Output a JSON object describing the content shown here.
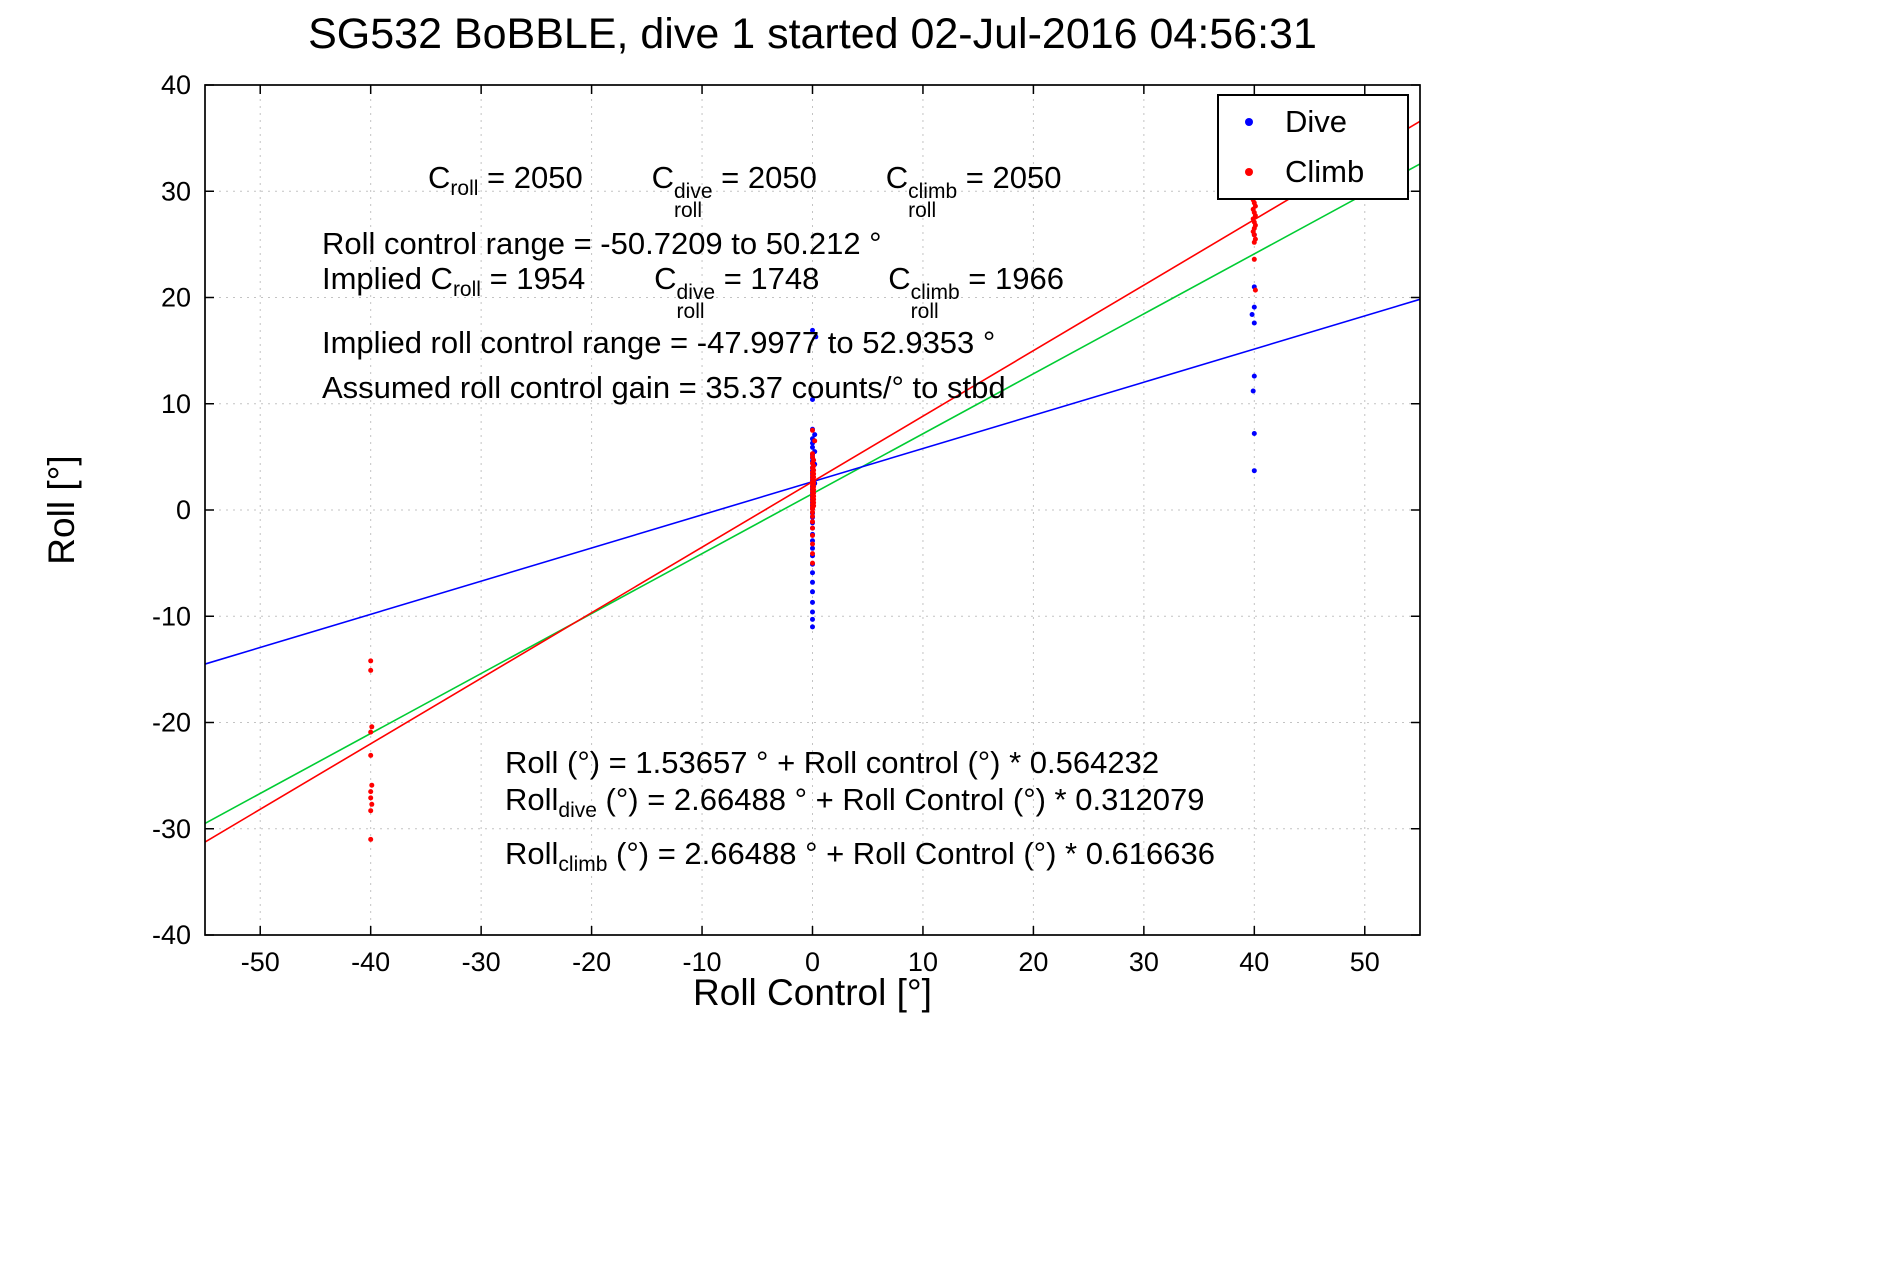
{
  "legend": {
    "items": [
      {
        "label": "Dive",
        "color": "#0000ff"
      },
      {
        "label": "Climb",
        "color": "#ff0000"
      }
    ]
  },
  "annotations": [
    {
      "text": "C_roll = 2050      C_roll^dive = 2050      C_roll^climb = 2050",
      "segments": [
        {
          "t": "C"
        },
        {
          "sub": "roll"
        },
        {
          "t": " = 2050        "
        },
        {
          "t": "C"
        },
        {
          "ss": [
            "dive",
            "roll"
          ]
        },
        {
          "t": " = 2050        "
        },
        {
          "t": "C"
        },
        {
          "ss": [
            "climb",
            "roll"
          ]
        },
        {
          "t": " = 2050"
        }
      ]
    },
    {
      "text": "Roll control range = -50.7209 to 50.212 °",
      "segments": [
        {
          "t": "Roll control range = -50.7209 to 50.212 °"
        }
      ]
    },
    {
      "text": "Implied C_roll = 1954      C_roll^dive = 1748      C_roll^climb = 1966",
      "segments": [
        {
          "t": "Implied C"
        },
        {
          "sub": "roll"
        },
        {
          "t": " = 1954        "
        },
        {
          "t": "C"
        },
        {
          "ss": [
            "dive",
            "roll"
          ]
        },
        {
          "t": " = 1748        "
        },
        {
          "t": "C"
        },
        {
          "ss": [
            "climb",
            "roll"
          ]
        },
        {
          "t": " = 1966"
        }
      ]
    },
    {
      "text": "Implied roll control range = -47.9977 to 52.9353 °",
      "segments": [
        {
          "t": "Implied roll control range = -47.9977 to 52.9353 °"
        }
      ]
    },
    {
      "text": "Assumed roll control gain = 35.37 counts/° to stbd",
      "segments": [
        {
          "t": "Assumed roll control gain = 35.37 counts/° to stbd"
        }
      ]
    },
    {
      "text": "Roll (°) = 1.53657 ° + Roll control (°) * 0.564232",
      "segments": [
        {
          "t": "Roll (°) = 1.53657 ° + Roll control (°) * 0.564232"
        }
      ]
    },
    {
      "text": "Roll_dive (°) = 2.66488 ° + Roll Control (°) * 0.312079",
      "segments": [
        {
          "t": "Roll"
        },
        {
          "sub": "dive"
        },
        {
          "t": " (°) = 2.66488 ° + Roll Control (°) * 0.312079"
        }
      ]
    },
    {
      "text": "Roll_climb (°) = 2.66488 ° + Roll Control (°) * 0.616636",
      "segments": [
        {
          "t": "Roll"
        },
        {
          "sub": "climb"
        },
        {
          "t": " (°) = 2.66488 ° + Roll Control (°) * 0.616636"
        }
      ]
    }
  ],
  "chart_data": {
    "type": "scatter",
    "title": "SG532 BoBBLE, dive 1 started 02-Jul-2016 04:56:31",
    "xlabel": "Roll Control [°]",
    "ylabel": "Roll [°]",
    "xlim": [
      -55,
      55
    ],
    "ylim": [
      -40,
      40
    ],
    "xticks": [
      -50,
      -40,
      -30,
      -20,
      -10,
      0,
      10,
      20,
      30,
      40,
      50
    ],
    "yticks": [
      -40,
      -30,
      -20,
      -10,
      0,
      10,
      20,
      30,
      40
    ],
    "grid": true,
    "legend_position": "top-right",
    "series": [
      {
        "name": "Dive",
        "color": "#0000ff",
        "points": [
          [
            0,
            16.9
          ],
          [
            0.3,
            16.3
          ],
          [
            0,
            10.4
          ],
          [
            0,
            7.6
          ],
          [
            0.2,
            7.1
          ],
          [
            0,
            6.7
          ],
          [
            0,
            6.3
          ],
          [
            0,
            5.9
          ],
          [
            0.2,
            5.5
          ],
          [
            0,
            5.2
          ],
          [
            0,
            4.9
          ],
          [
            0,
            4.6
          ],
          [
            0.2,
            4.3
          ],
          [
            0,
            4.0
          ],
          [
            0,
            3.7
          ],
          [
            0,
            3.4
          ],
          [
            0,
            3.1
          ],
          [
            0,
            2.8
          ],
          [
            0.2,
            2.5
          ],
          [
            0,
            2.2
          ],
          [
            0,
            1.9
          ],
          [
            0,
            1.6
          ],
          [
            0,
            1.3
          ],
          [
            0,
            1.0
          ],
          [
            0,
            0.7
          ],
          [
            0,
            0.4
          ],
          [
            0,
            0.1
          ],
          [
            0,
            -0.3
          ],
          [
            0,
            -0.7
          ],
          [
            0,
            -1.2
          ],
          [
            0,
            -1.7
          ],
          [
            0,
            -2.3
          ],
          [
            0,
            -2.9
          ],
          [
            0,
            -3.6
          ],
          [
            0,
            -4.3
          ],
          [
            0,
            -5.1
          ],
          [
            0,
            -5.9
          ],
          [
            0,
            -6.8
          ],
          [
            0,
            -7.7
          ],
          [
            0,
            -8.7
          ],
          [
            0,
            -9.6
          ],
          [
            0,
            -10.3
          ],
          [
            0,
            -11.0
          ],
          [
            40,
            25.9
          ],
          [
            40,
            21.0
          ],
          [
            40,
            19.1
          ],
          [
            39.8,
            18.4
          ],
          [
            40,
            17.6
          ],
          [
            40,
            12.6
          ],
          [
            39.9,
            11.2
          ],
          [
            40,
            7.2
          ],
          [
            40,
            3.7
          ]
        ]
      },
      {
        "name": "Climb",
        "color": "#ff0000",
        "points": [
          [
            0,
            7.5
          ],
          [
            0.2,
            6.5
          ],
          [
            0,
            5.3
          ],
          [
            0,
            5.0
          ],
          [
            0.1,
            4.7
          ],
          [
            0,
            4.4
          ],
          [
            0.1,
            4.15
          ],
          [
            0,
            3.95
          ],
          [
            0.1,
            3.75
          ],
          [
            0,
            3.55
          ],
          [
            0.1,
            3.4
          ],
          [
            0,
            3.25
          ],
          [
            0.1,
            3.1
          ],
          [
            0,
            2.95
          ],
          [
            0.1,
            2.8
          ],
          [
            0,
            2.65
          ],
          [
            0.1,
            2.5
          ],
          [
            0,
            2.35
          ],
          [
            0.1,
            2.2
          ],
          [
            0,
            2.05
          ],
          [
            0.1,
            1.9
          ],
          [
            0,
            1.75
          ],
          [
            0.1,
            1.6
          ],
          [
            0,
            1.45
          ],
          [
            0.1,
            1.3
          ],
          [
            0,
            1.15
          ],
          [
            0.1,
            1.0
          ],
          [
            0,
            0.85
          ],
          [
            0.1,
            0.7
          ],
          [
            0,
            0.55
          ],
          [
            0.1,
            0.4
          ],
          [
            0,
            0.25
          ],
          [
            0,
            0.1
          ],
          [
            0,
            -0.2
          ],
          [
            0,
            -0.6
          ],
          [
            0,
            -1.1
          ],
          [
            0,
            -1.7
          ],
          [
            0,
            -2.4
          ],
          [
            0,
            -3.2
          ],
          [
            0,
            -4.1
          ],
          [
            0,
            -5.0
          ],
          [
            -40,
            -14.2
          ],
          [
            -40,
            -15.1
          ],
          [
            -39.9,
            -20.4
          ],
          [
            -40,
            -20.9
          ],
          [
            -40,
            -23.1
          ],
          [
            -39.9,
            -25.9
          ],
          [
            -40,
            -26.5
          ],
          [
            -40,
            -27.1
          ],
          [
            -39.9,
            -27.7
          ],
          [
            -40,
            -28.3
          ],
          [
            -40,
            -31.0
          ],
          [
            39.9,
            29.2
          ],
          [
            40,
            28.9
          ],
          [
            40.1,
            28.6
          ],
          [
            39.9,
            28.3
          ],
          [
            40,
            28.0
          ],
          [
            40.1,
            27.7
          ],
          [
            39.9,
            27.4
          ],
          [
            40,
            27.1
          ],
          [
            40.1,
            26.8
          ],
          [
            40,
            26.5
          ],
          [
            39.9,
            26.2
          ],
          [
            40,
            25.9
          ],
          [
            40.1,
            25.5
          ],
          [
            40,
            25.2
          ],
          [
            40,
            23.6
          ],
          [
            40.1,
            20.7
          ]
        ]
      }
    ],
    "fit_lines": [
      {
        "name": "all",
        "intercept": 1.53657,
        "slope": 0.564232,
        "color": "#00cc33"
      },
      {
        "name": "dive",
        "intercept": 2.66488,
        "slope": 0.312079,
        "color": "#0000ff"
      },
      {
        "name": "climb",
        "intercept": 2.66488,
        "slope": 0.616636,
        "color": "#ff0000"
      }
    ]
  }
}
